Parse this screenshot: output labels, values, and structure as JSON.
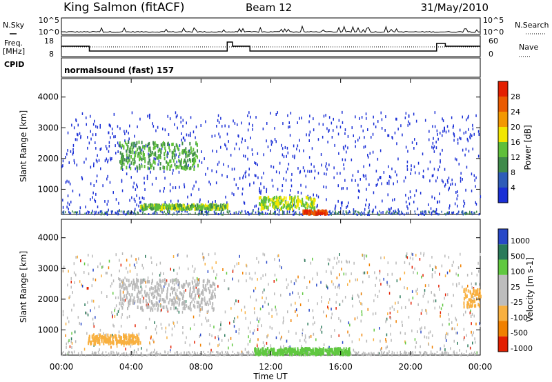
{
  "header": {
    "station": "King Salmon (fitACF)",
    "beam": "Beam 12",
    "date": "31/May/2010"
  },
  "left_labels": {
    "nsky": "N.Sky",
    "freq": "Freq.",
    "freq_unit": "[MHz]",
    "cpid": "CPID"
  },
  "right_labels": {
    "nsearch": "N.Search",
    "nave": "Nave"
  },
  "noise_axis": {
    "left_ticks": [
      "10^5",
      "10^0"
    ],
    "right_ticks": [
      "10^5",
      "10^0"
    ]
  },
  "freq_axis": {
    "left_ticks": [
      "18",
      "8"
    ],
    "right_ticks": [
      "60",
      "0"
    ]
  },
  "cpid_text": "normalsound (fast) 157",
  "time_axis": {
    "label": "Time UT",
    "ticks": [
      "00:00",
      "04:00",
      "08:00",
      "12:00",
      "16:00",
      "20:00",
      "00:00"
    ]
  },
  "colors": {
    "power": [
      "#1a2fd6",
      "#2e5cb8",
      "#3f8a4a",
      "#5fbf3a",
      "#f2e600",
      "#f39800",
      "#ea5a00",
      "#e31f00"
    ],
    "velocity": [
      "#e31f00",
      "#f08000",
      "#f8b040",
      "#bdbdbd",
      "#bdbdbd",
      "#60c840",
      "#2a7a5a",
      "#2848c8"
    ],
    "ground_scatter": "#b8b8b8"
  },
  "chart_data": [
    {
      "type": "heatmap",
      "title": "Power",
      "xlabel": "",
      "ylabel": "Slant Range [km]",
      "x_range_hours": [
        0,
        24
      ],
      "ylim": [
        180,
        4600
      ],
      "y_ticks": [
        "1000",
        "2000",
        "3000",
        "4000"
      ],
      "colorbar": {
        "label": "Power [dB]",
        "ticks": [
          "4",
          "8",
          "12",
          "16",
          "20",
          "24",
          "28"
        ],
        "range": [
          0,
          30
        ]
      },
      "features": [
        {
          "name": "E-region echoes",
          "hours": [
            4.5,
            9.5
          ],
          "range_km": [
            400,
            550
          ],
          "power_db": 14
        },
        {
          "name": "F-region arc",
          "hours": [
            3.3,
            7.8
          ],
          "range_km": [
            1700,
            2600
          ],
          "power_db": 12
        },
        {
          "name": "midday patch",
          "hours": [
            11.3,
            14.5
          ],
          "range_km": [
            400,
            800
          ],
          "power_db": 16
        },
        {
          "name": "near-range max",
          "hours": [
            13.8,
            15.2
          ],
          "range_km": [
            250,
            350
          ],
          "power_db": 28
        }
      ]
    },
    {
      "type": "heatmap",
      "title": "Velocity",
      "xlabel": "Time UT",
      "ylabel": "Slant Range [km]",
      "x_range_hours": [
        0,
        24
      ],
      "ylim": [
        180,
        4600
      ],
      "y_ticks": [
        "1000",
        "2000",
        "3000",
        "4000"
      ],
      "colorbar": {
        "label": "Velocity [m s-1]",
        "ticks": [
          "1000",
          "500",
          "100",
          "25",
          "-25",
          "-100",
          "-500",
          "-1000"
        ]
      },
      "features": [
        {
          "name": "ground scatter arc",
          "hours": [
            3.3,
            8.8
          ],
          "range_km": [
            1700,
            2700
          ],
          "velocity": 0
        },
        {
          "name": "receding morning",
          "hours": [
            1.5,
            4.5
          ],
          "range_km": [
            600,
            900
          ],
          "velocity": -150
        },
        {
          "name": "approaching midday",
          "hours": [
            11.0,
            16.5
          ],
          "range_km": [
            250,
            450
          ],
          "velocity": 100
        },
        {
          "name": "receding evening",
          "hours": [
            23.0,
            24.0
          ],
          "range_km": [
            1800,
            2400
          ],
          "velocity": -300
        }
      ]
    }
  ]
}
